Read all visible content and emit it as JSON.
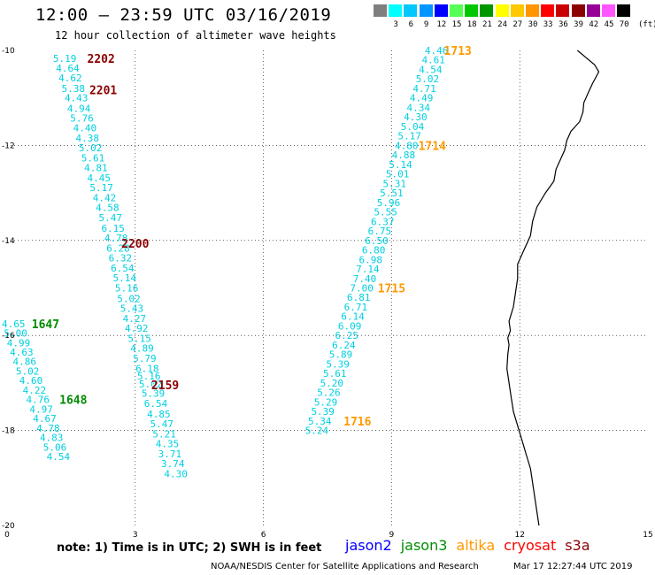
{
  "title": "12:00 — 23:59 UTC 03/16/2019",
  "subtitle": "12 hour collection of altimeter wave heights",
  "legend": {
    "unit": "(ft)",
    "swatches": [
      {
        "label": "",
        "color": "#7f7f7f"
      },
      {
        "label": "3",
        "color": "#00ffff"
      },
      {
        "label": "6",
        "color": "#00c8ff"
      },
      {
        "label": "9",
        "color": "#0096ff"
      },
      {
        "label": "12",
        "color": "#0000ff"
      },
      {
        "label": "15",
        "color": "#55ff55"
      },
      {
        "label": "18",
        "color": "#00c800"
      },
      {
        "label": "21",
        "color": "#009600"
      },
      {
        "label": "24",
        "color": "#ffff00"
      },
      {
        "label": "27",
        "color": "#ffc800"
      },
      {
        "label": "30",
        "color": "#ff9600"
      },
      {
        "label": "33",
        "color": "#ff0000"
      },
      {
        "label": "36",
        "color": "#c80000"
      },
      {
        "label": "39",
        "color": "#8b0000"
      },
      {
        "label": "42",
        "color": "#960096"
      },
      {
        "label": "45",
        "color": "#ff55ff"
      },
      {
        "label": "70",
        "color": "#000000"
      }
    ]
  },
  "axes": {
    "x_ticks": [
      {
        "v": 0,
        "label": "0"
      },
      {
        "v": 3,
        "label": "3"
      },
      {
        "v": 6,
        "label": "6"
      },
      {
        "v": 9,
        "label": "9"
      },
      {
        "v": 12,
        "label": "12"
      },
      {
        "v": 15,
        "label": "15"
      }
    ],
    "y_ticks": [
      {
        "v": -10,
        "label": "-10"
      },
      {
        "v": -12,
        "label": "-12"
      },
      {
        "v": -14,
        "label": "-14"
      },
      {
        "v": -16,
        "label": "-16"
      },
      {
        "v": -18,
        "label": "-18"
      },
      {
        "v": -20,
        "label": "-20"
      }
    ],
    "xlim": [
      0,
      15
    ],
    "ylim": [
      -20,
      -10
    ],
    "grid": "dotted"
  },
  "colors": {
    "value": "#00d0e0",
    "jason2": "#0000ff",
    "jason3": "#008c00",
    "altika": "#ff9900",
    "cryosat": "#ff0000",
    "s3a": "#8b0000"
  },
  "tracks": [
    {
      "satellite": "s3a",
      "points": [
        {
          "x": 1.35,
          "y": -10.17,
          "v": "5.19"
        },
        {
          "x": 1.42,
          "y": -10.37,
          "v": "4.64"
        },
        {
          "x": 1.48,
          "y": -10.58,
          "v": "4.62"
        },
        {
          "x": 1.55,
          "y": -10.8,
          "v": "5.38"
        },
        {
          "x": 1.62,
          "y": -11.0,
          "v": "4.43"
        },
        {
          "x": 1.68,
          "y": -11.22,
          "v": "4.94"
        },
        {
          "x": 1.75,
          "y": -11.42,
          "v": "5.76"
        },
        {
          "x": 1.82,
          "y": -11.63,
          "v": "4.40"
        },
        {
          "x": 1.88,
          "y": -11.84,
          "v": "4.38"
        },
        {
          "x": 1.95,
          "y": -12.05,
          "v": "5.02"
        },
        {
          "x": 2.01,
          "y": -12.26,
          "v": "5.61"
        },
        {
          "x": 2.08,
          "y": -12.47,
          "v": "4.81"
        },
        {
          "x": 2.15,
          "y": -12.68,
          "v": "4.45"
        },
        {
          "x": 2.21,
          "y": -12.89,
          "v": "5.17"
        },
        {
          "x": 2.28,
          "y": -13.1,
          "v": "4.42"
        },
        {
          "x": 2.35,
          "y": -13.31,
          "v": "4.58"
        },
        {
          "x": 2.42,
          "y": -13.52,
          "v": "5.47"
        },
        {
          "x": 2.48,
          "y": -13.74,
          "v": "6.15"
        },
        {
          "x": 2.55,
          "y": -13.95,
          "v": "4.78"
        },
        {
          "x": 2.6,
          "y": -14.16,
          "v": "6.28"
        },
        {
          "x": 2.65,
          "y": -14.37,
          "v": "6.32"
        },
        {
          "x": 2.7,
          "y": -14.58,
          "v": "6.54"
        },
        {
          "x": 2.75,
          "y": -14.79,
          "v": "5.14"
        },
        {
          "x": 2.8,
          "y": -15.0,
          "v": "5.16"
        },
        {
          "x": 2.85,
          "y": -15.22,
          "v": "5.02"
        },
        {
          "x": 2.92,
          "y": -15.43,
          "v": "5.43"
        },
        {
          "x": 2.98,
          "y": -15.64,
          "v": "4.27"
        },
        {
          "x": 3.03,
          "y": -15.85,
          "v": "4.92"
        },
        {
          "x": 3.1,
          "y": -16.06,
          "v": "5.15"
        },
        {
          "x": 3.16,
          "y": -16.27,
          "v": "4.89"
        },
        {
          "x": 3.22,
          "y": -16.48,
          "v": "5.79"
        },
        {
          "x": 3.28,
          "y": -16.69,
          "v": "6.18"
        },
        {
          "x": 3.32,
          "y": -16.85,
          "v": "5.16"
        },
        {
          "x": 3.36,
          "y": -17.02,
          "v": "5.02"
        },
        {
          "x": 3.42,
          "y": -17.22,
          "v": "5.39"
        },
        {
          "x": 3.48,
          "y": -17.43,
          "v": "6.54"
        },
        {
          "x": 3.55,
          "y": -17.65,
          "v": "4.85"
        },
        {
          "x": 3.62,
          "y": -17.86,
          "v": "5.47"
        },
        {
          "x": 3.68,
          "y": -18.07,
          "v": "5.21"
        },
        {
          "x": 3.75,
          "y": -18.28,
          "v": "4.35"
        },
        {
          "x": 3.81,
          "y": -18.49,
          "v": "3.71"
        },
        {
          "x": 3.88,
          "y": -18.7,
          "v": "3.74"
        },
        {
          "x": 3.95,
          "y": -18.91,
          "v": "4.30"
        }
      ],
      "times": [
        {
          "x": 2.2,
          "y": -10.17,
          "t": "2202"
        },
        {
          "x": 2.25,
          "y": -10.83,
          "t": "2201"
        },
        {
          "x": 3.0,
          "y": -14.06,
          "t": "2200"
        },
        {
          "x": 3.7,
          "y": -17.04,
          "t": "2159"
        }
      ]
    },
    {
      "satellite": "altika",
      "points": [
        {
          "x": 10.05,
          "y": -10.0,
          "v": "4.46"
        },
        {
          "x": 9.98,
          "y": -10.2,
          "v": "4.61"
        },
        {
          "x": 9.91,
          "y": -10.4,
          "v": "4.54"
        },
        {
          "x": 9.84,
          "y": -10.6,
          "v": "5.02"
        },
        {
          "x": 9.77,
          "y": -10.8,
          "v": "4.71"
        },
        {
          "x": 9.7,
          "y": -11.0,
          "v": "4.49"
        },
        {
          "x": 9.63,
          "y": -11.2,
          "v": "4.34"
        },
        {
          "x": 9.56,
          "y": -11.4,
          "v": "4.30"
        },
        {
          "x": 9.49,
          "y": -11.6,
          "v": "5.04"
        },
        {
          "x": 9.42,
          "y": -11.8,
          "v": "5.17"
        },
        {
          "x": 9.35,
          "y": -12.0,
          "v": "4.80"
        },
        {
          "x": 9.28,
          "y": -12.2,
          "v": "4.88"
        },
        {
          "x": 9.21,
          "y": -12.4,
          "v": "5.14"
        },
        {
          "x": 9.14,
          "y": -12.6,
          "v": "5.01"
        },
        {
          "x": 9.07,
          "y": -12.8,
          "v": "5.31"
        },
        {
          "x": 9.0,
          "y": -13.0,
          "v": "5.51"
        },
        {
          "x": 8.93,
          "y": -13.2,
          "v": "5.96"
        },
        {
          "x": 8.86,
          "y": -13.4,
          "v": "5.55"
        },
        {
          "x": 8.79,
          "y": -13.6,
          "v": "6.37"
        },
        {
          "x": 8.72,
          "y": -13.8,
          "v": "6.75"
        },
        {
          "x": 8.65,
          "y": -14.0,
          "v": "6.50"
        },
        {
          "x": 8.58,
          "y": -14.2,
          "v": "6.80"
        },
        {
          "x": 8.51,
          "y": -14.4,
          "v": "6.98"
        },
        {
          "x": 8.44,
          "y": -14.6,
          "v": "7.14"
        },
        {
          "x": 8.37,
          "y": -14.8,
          "v": "7.40"
        },
        {
          "x": 8.3,
          "y": -15.0,
          "v": "7.00"
        },
        {
          "x": 8.23,
          "y": -15.2,
          "v": "6.81"
        },
        {
          "x": 8.16,
          "y": -15.4,
          "v": "6.71"
        },
        {
          "x": 8.09,
          "y": -15.6,
          "v": "6.14"
        },
        {
          "x": 8.02,
          "y": -15.8,
          "v": "6.09"
        },
        {
          "x": 7.95,
          "y": -16.0,
          "v": "6.25"
        },
        {
          "x": 7.88,
          "y": -16.2,
          "v": "6.24"
        },
        {
          "x": 7.81,
          "y": -16.4,
          "v": "5.89"
        },
        {
          "x": 7.74,
          "y": -16.6,
          "v": "5.39"
        },
        {
          "x": 7.67,
          "y": -16.8,
          "v": "5.61"
        },
        {
          "x": 7.6,
          "y": -17.0,
          "v": "5.20"
        },
        {
          "x": 7.53,
          "y": -17.2,
          "v": "5.26"
        },
        {
          "x": 7.46,
          "y": -17.4,
          "v": "5.29"
        },
        {
          "x": 7.39,
          "y": -17.6,
          "v": "5.39"
        },
        {
          "x": 7.32,
          "y": -17.8,
          "v": "5.34"
        },
        {
          "x": 7.25,
          "y": -18.0,
          "v": "5.24"
        }
      ],
      "times": [
        {
          "x": 10.55,
          "y": -10.0,
          "t": "1713"
        },
        {
          "x": 9.95,
          "y": -12.0,
          "t": "1714"
        },
        {
          "x": 9.0,
          "y": -15.0,
          "t": "1715"
        },
        {
          "x": 8.2,
          "y": -17.8,
          "t": "1716"
        }
      ]
    },
    {
      "satellite": "jason3",
      "points": [
        {
          "x": 0.15,
          "y": -15.75,
          "v": "4.65"
        },
        {
          "x": 0.2,
          "y": -15.95,
          "v": "5.00"
        },
        {
          "x": 0.27,
          "y": -16.15,
          "v": "4.99"
        },
        {
          "x": 0.34,
          "y": -16.35,
          "v": "4.63"
        },
        {
          "x": 0.41,
          "y": -16.55,
          "v": "4.86"
        },
        {
          "x": 0.48,
          "y": -16.75,
          "v": "5.02"
        },
        {
          "x": 0.56,
          "y": -16.95,
          "v": "4.60"
        },
        {
          "x": 0.64,
          "y": -17.15,
          "v": "4.22"
        },
        {
          "x": 0.72,
          "y": -17.35,
          "v": "4.76"
        },
        {
          "x": 0.8,
          "y": -17.55,
          "v": "4.97"
        },
        {
          "x": 0.88,
          "y": -17.75,
          "v": "4.67"
        },
        {
          "x": 0.96,
          "y": -17.95,
          "v": "4.78"
        },
        {
          "x": 1.04,
          "y": -18.15,
          "v": "4.83"
        },
        {
          "x": 1.12,
          "y": -18.35,
          "v": "5.06"
        },
        {
          "x": 1.2,
          "y": -18.55,
          "v": "4.54"
        }
      ],
      "times": [
        {
          "x": 0.9,
          "y": -15.75,
          "t": "1647"
        },
        {
          "x": 1.55,
          "y": -17.35,
          "t": "1648"
        }
      ]
    }
  ],
  "coastline": [
    [
      13.35,
      -10.0
    ],
    [
      13.55,
      -10.15
    ],
    [
      13.75,
      -10.3
    ],
    [
      13.85,
      -10.45
    ],
    [
      13.7,
      -10.7
    ],
    [
      13.6,
      -10.9
    ],
    [
      13.5,
      -11.1
    ],
    [
      13.48,
      -11.3
    ],
    [
      13.4,
      -11.5
    ],
    [
      13.2,
      -11.7
    ],
    [
      13.1,
      -11.9
    ],
    [
      13.05,
      -12.1
    ],
    [
      12.95,
      -12.3
    ],
    [
      12.85,
      -12.5
    ],
    [
      12.8,
      -12.75
    ],
    [
      12.6,
      -13.0
    ],
    [
      12.4,
      -13.3
    ],
    [
      12.3,
      -13.6
    ],
    [
      12.25,
      -13.9
    ],
    [
      12.1,
      -14.2
    ],
    [
      11.95,
      -14.5
    ],
    [
      11.95,
      -14.8
    ],
    [
      11.9,
      -15.1
    ],
    [
      11.85,
      -15.4
    ],
    [
      11.75,
      -15.7
    ],
    [
      11.78,
      -15.9
    ],
    [
      11.72,
      -16.05
    ],
    [
      11.75,
      -16.2
    ],
    [
      11.72,
      -16.4
    ],
    [
      11.7,
      -16.7
    ],
    [
      11.75,
      -17.0
    ],
    [
      11.8,
      -17.3
    ],
    [
      11.85,
      -17.6
    ],
    [
      11.95,
      -17.9
    ],
    [
      12.05,
      -18.2
    ],
    [
      12.15,
      -18.5
    ],
    [
      12.25,
      -18.8
    ],
    [
      12.3,
      -19.1
    ],
    [
      12.35,
      -19.4
    ],
    [
      12.4,
      -19.7
    ],
    [
      12.45,
      -20.0
    ]
  ],
  "satellites": [
    {
      "name": "jason2",
      "color": "#0000ff"
    },
    {
      "name": "jason3",
      "color": "#008c00"
    },
    {
      "name": "altika",
      "color": "#ff9900"
    },
    {
      "name": "cryosat",
      "color": "#ff0000"
    },
    {
      "name": "s3a",
      "color": "#8b0000"
    }
  ],
  "footer": {
    "note": "note:  1) Time is in UTC;  2) SWH is in feet",
    "credit": "NOAA/NESDIS Center for Satellite Applications and Research",
    "date": "Mar 17  12:27:44 UTC 2019"
  }
}
